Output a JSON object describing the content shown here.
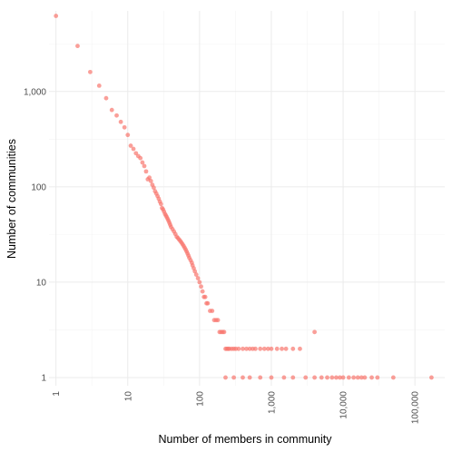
{
  "chart_data": {
    "type": "scatter",
    "title": "",
    "xlabel": "Number of members in community",
    "ylabel": "Number of communities",
    "x_scale": "log10",
    "y_scale": "log10",
    "xlim": [
      0.8,
      260000
    ],
    "ylim": [
      0.82,
      7000
    ],
    "x_ticks": [
      1,
      10,
      100,
      1000,
      10000,
      100000
    ],
    "x_tick_labels": [
      "1",
      "10",
      "100",
      "1,000",
      "10,000",
      "100,000"
    ],
    "x_tick_label_rotation": -90,
    "y_ticks": [
      1,
      10,
      100,
      1000
    ],
    "y_tick_labels": [
      "1",
      "10",
      "100",
      "1,000"
    ],
    "grid": true,
    "legend": "none",
    "point_color": "#F8766D",
    "point_opacity": 0.7,
    "series": [
      {
        "points": [
          [
            1,
            6200
          ],
          [
            2,
            3000
          ],
          [
            3,
            1600
          ],
          [
            4,
            1150
          ],
          [
            5,
            850
          ],
          [
            6,
            640
          ],
          [
            7,
            560
          ],
          [
            8,
            480
          ],
          [
            9,
            420
          ],
          [
            10,
            350
          ],
          [
            11,
            270
          ],
          [
            12,
            250
          ],
          [
            13,
            225
          ],
          [
            14,
            210
          ],
          [
            15,
            200
          ],
          [
            16,
            180
          ],
          [
            17,
            165
          ],
          [
            18,
            145
          ],
          [
            19,
            120
          ],
          [
            20,
            125
          ],
          [
            21,
            115
          ],
          [
            22,
            105
          ],
          [
            23,
            98
          ],
          [
            24,
            90
          ],
          [
            25,
            85
          ],
          [
            26,
            80
          ],
          [
            27,
            75
          ],
          [
            28,
            70
          ],
          [
            29,
            66
          ],
          [
            30,
            60
          ],
          [
            31,
            58
          ],
          [
            32,
            55
          ],
          [
            33,
            52
          ],
          [
            34,
            50
          ],
          [
            35,
            48
          ],
          [
            36,
            46
          ],
          [
            37,
            44
          ],
          [
            38,
            42
          ],
          [
            39,
            40
          ],
          [
            40,
            38
          ],
          [
            42,
            36
          ],
          [
            44,
            34
          ],
          [
            46,
            32
          ],
          [
            48,
            30
          ],
          [
            50,
            29
          ],
          [
            52,
            28
          ],
          [
            54,
            27
          ],
          [
            56,
            26
          ],
          [
            58,
            25
          ],
          [
            60,
            24
          ],
          [
            62,
            23
          ],
          [
            64,
            22
          ],
          [
            66,
            21
          ],
          [
            68,
            20
          ],
          [
            70,
            19
          ],
          [
            72,
            18
          ],
          [
            75,
            17
          ],
          [
            78,
            16
          ],
          [
            80,
            15
          ],
          [
            83,
            14
          ],
          [
            86,
            13
          ],
          [
            90,
            12
          ],
          [
            95,
            11
          ],
          [
            100,
            10
          ],
          [
            105,
            9
          ],
          [
            110,
            8
          ],
          [
            115,
            7
          ],
          [
            120,
            7
          ],
          [
            125,
            6
          ],
          [
            130,
            6
          ],
          [
            140,
            5
          ],
          [
            150,
            5
          ],
          [
            160,
            4
          ],
          [
            170,
            4
          ],
          [
            180,
            4
          ],
          [
            190,
            3
          ],
          [
            200,
            3
          ],
          [
            210,
            3
          ],
          [
            220,
            3
          ],
          [
            230,
            2
          ],
          [
            240,
            2
          ],
          [
            250,
            2
          ],
          [
            260,
            2
          ],
          [
            280,
            2
          ],
          [
            300,
            2
          ],
          [
            320,
            2
          ],
          [
            350,
            2
          ],
          [
            400,
            2
          ],
          [
            450,
            2
          ],
          [
            500,
            2
          ],
          [
            550,
            2
          ],
          [
            600,
            2
          ],
          [
            700,
            2
          ],
          [
            800,
            2
          ],
          [
            900,
            2
          ],
          [
            1000,
            2
          ],
          [
            1200,
            2
          ],
          [
            1400,
            2
          ],
          [
            1600,
            2
          ],
          [
            2000,
            2
          ],
          [
            2500,
            2
          ],
          [
            4000,
            3
          ],
          [
            230,
            1
          ],
          [
            300,
            1
          ],
          [
            400,
            1
          ],
          [
            500,
            1
          ],
          [
            700,
            1
          ],
          [
            1000,
            1
          ],
          [
            1500,
            1
          ],
          [
            2000,
            1
          ],
          [
            3000,
            1
          ],
          [
            4000,
            1
          ],
          [
            5000,
            1
          ],
          [
            6000,
            1
          ],
          [
            7000,
            1
          ],
          [
            8000,
            1
          ],
          [
            9000,
            1
          ],
          [
            10000,
            1
          ],
          [
            12000,
            1
          ],
          [
            14000,
            1
          ],
          [
            16000,
            1
          ],
          [
            18000,
            1
          ],
          [
            20000,
            1
          ],
          [
            25000,
            1
          ],
          [
            30000,
            1
          ],
          [
            50000,
            1
          ],
          [
            170000,
            1
          ]
        ]
      }
    ]
  }
}
